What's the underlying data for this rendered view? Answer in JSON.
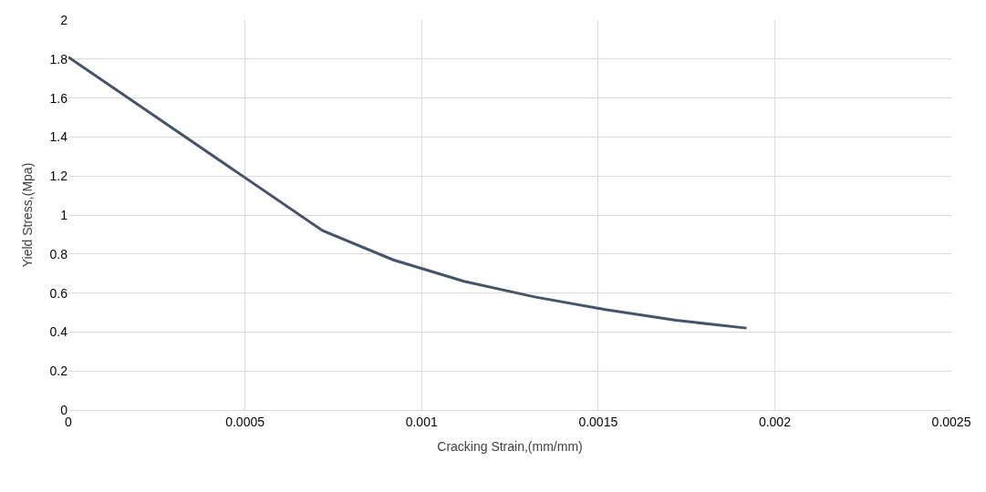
{
  "chart_data": {
    "type": "line",
    "xlabel": "Cracking Strain,(mm/mm)",
    "ylabel": "Yield Stress,(Mpa)",
    "x": [
      0,
      0.00072,
      0.00092,
      0.00112,
      0.00132,
      0.00152,
      0.00172,
      0.00192
    ],
    "series": [
      {
        "color": "#44546a",
        "values": [
          1.81,
          0.92,
          0.77,
          0.66,
          0.58,
          0.515,
          0.46,
          0.42
        ]
      }
    ],
    "xlim": [
      0,
      0.0025
    ],
    "xticks": [
      0,
      0.0005,
      0.001,
      0.0015,
      0.002,
      0.0025
    ],
    "ylim": [
      0,
      2
    ],
    "yticks": [
      0,
      0.2,
      0.4,
      0.6,
      0.8,
      1,
      1.2,
      1.4,
      1.6,
      1.8,
      2
    ],
    "grid": true,
    "marker": "none",
    "line_style": "solid"
  }
}
